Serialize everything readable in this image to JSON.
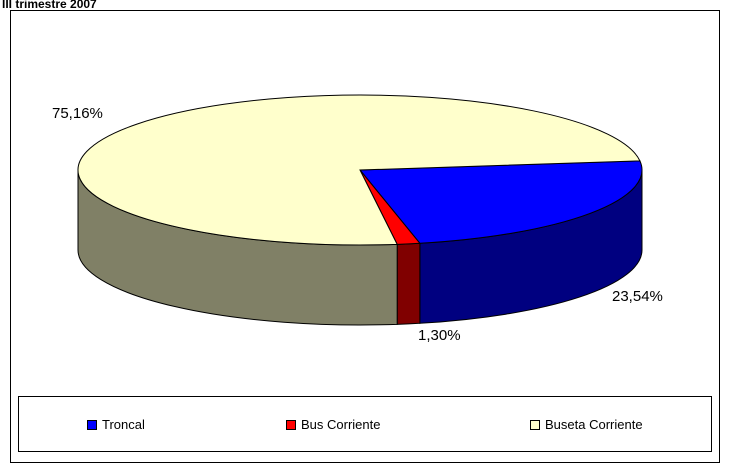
{
  "header": {
    "title": "III trimestre 2007"
  },
  "chart_data": {
    "type": "pie",
    "title": "III trimestre 2007",
    "style": "3d-tilted",
    "legend_position": "bottom",
    "slices": [
      {
        "label": "Troncal",
        "value": 23.54,
        "display": "23,54%",
        "color": "#0000ff",
        "side_color": "#000080"
      },
      {
        "label": "Bus Corriente",
        "value": 1.3,
        "display": "1,30%",
        "color": "#ff0000",
        "side_color": "#800000"
      },
      {
        "label": "Buseta Corriente",
        "value": 75.16,
        "display": "75,16%",
        "color": "#ffffcc",
        "side_color": "#808066"
      }
    ]
  }
}
